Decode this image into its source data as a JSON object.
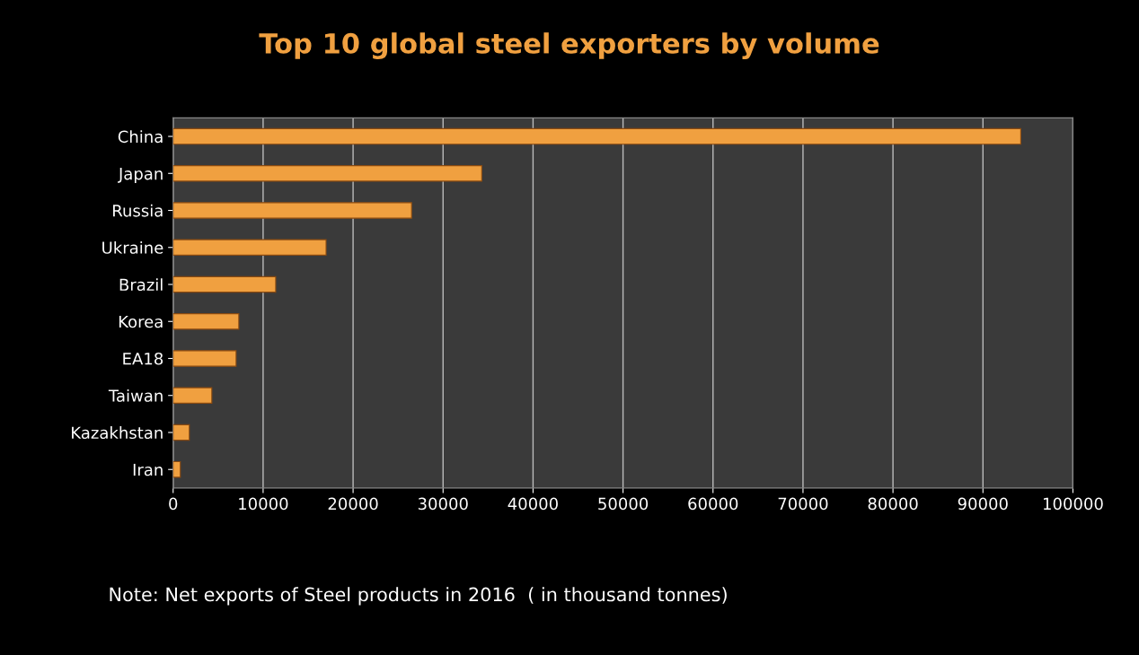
{
  "chart_data": {
    "type": "bar",
    "orientation": "horizontal",
    "title": "Top 10 global steel exporters by volume",
    "categories": [
      "China",
      "Japan",
      "Russia",
      "Ukraine",
      "Brazil",
      "Korea",
      "EA18",
      "Taiwan",
      "Kazakhstan",
      "Iran"
    ],
    "values": [
      94200,
      34300,
      26500,
      17000,
      11400,
      7300,
      7000,
      4300,
      1800,
      800
    ],
    "color": "#f0a040",
    "xlim": [
      0,
      100000
    ],
    "xticks": [
      0,
      10000,
      20000,
      30000,
      40000,
      50000,
      60000,
      70000,
      80000,
      90000,
      100000
    ],
    "grid": "x",
    "annotations": [
      "Note: Net exports of Steel products in 2016  ( in thousand tonnes)"
    ]
  }
}
